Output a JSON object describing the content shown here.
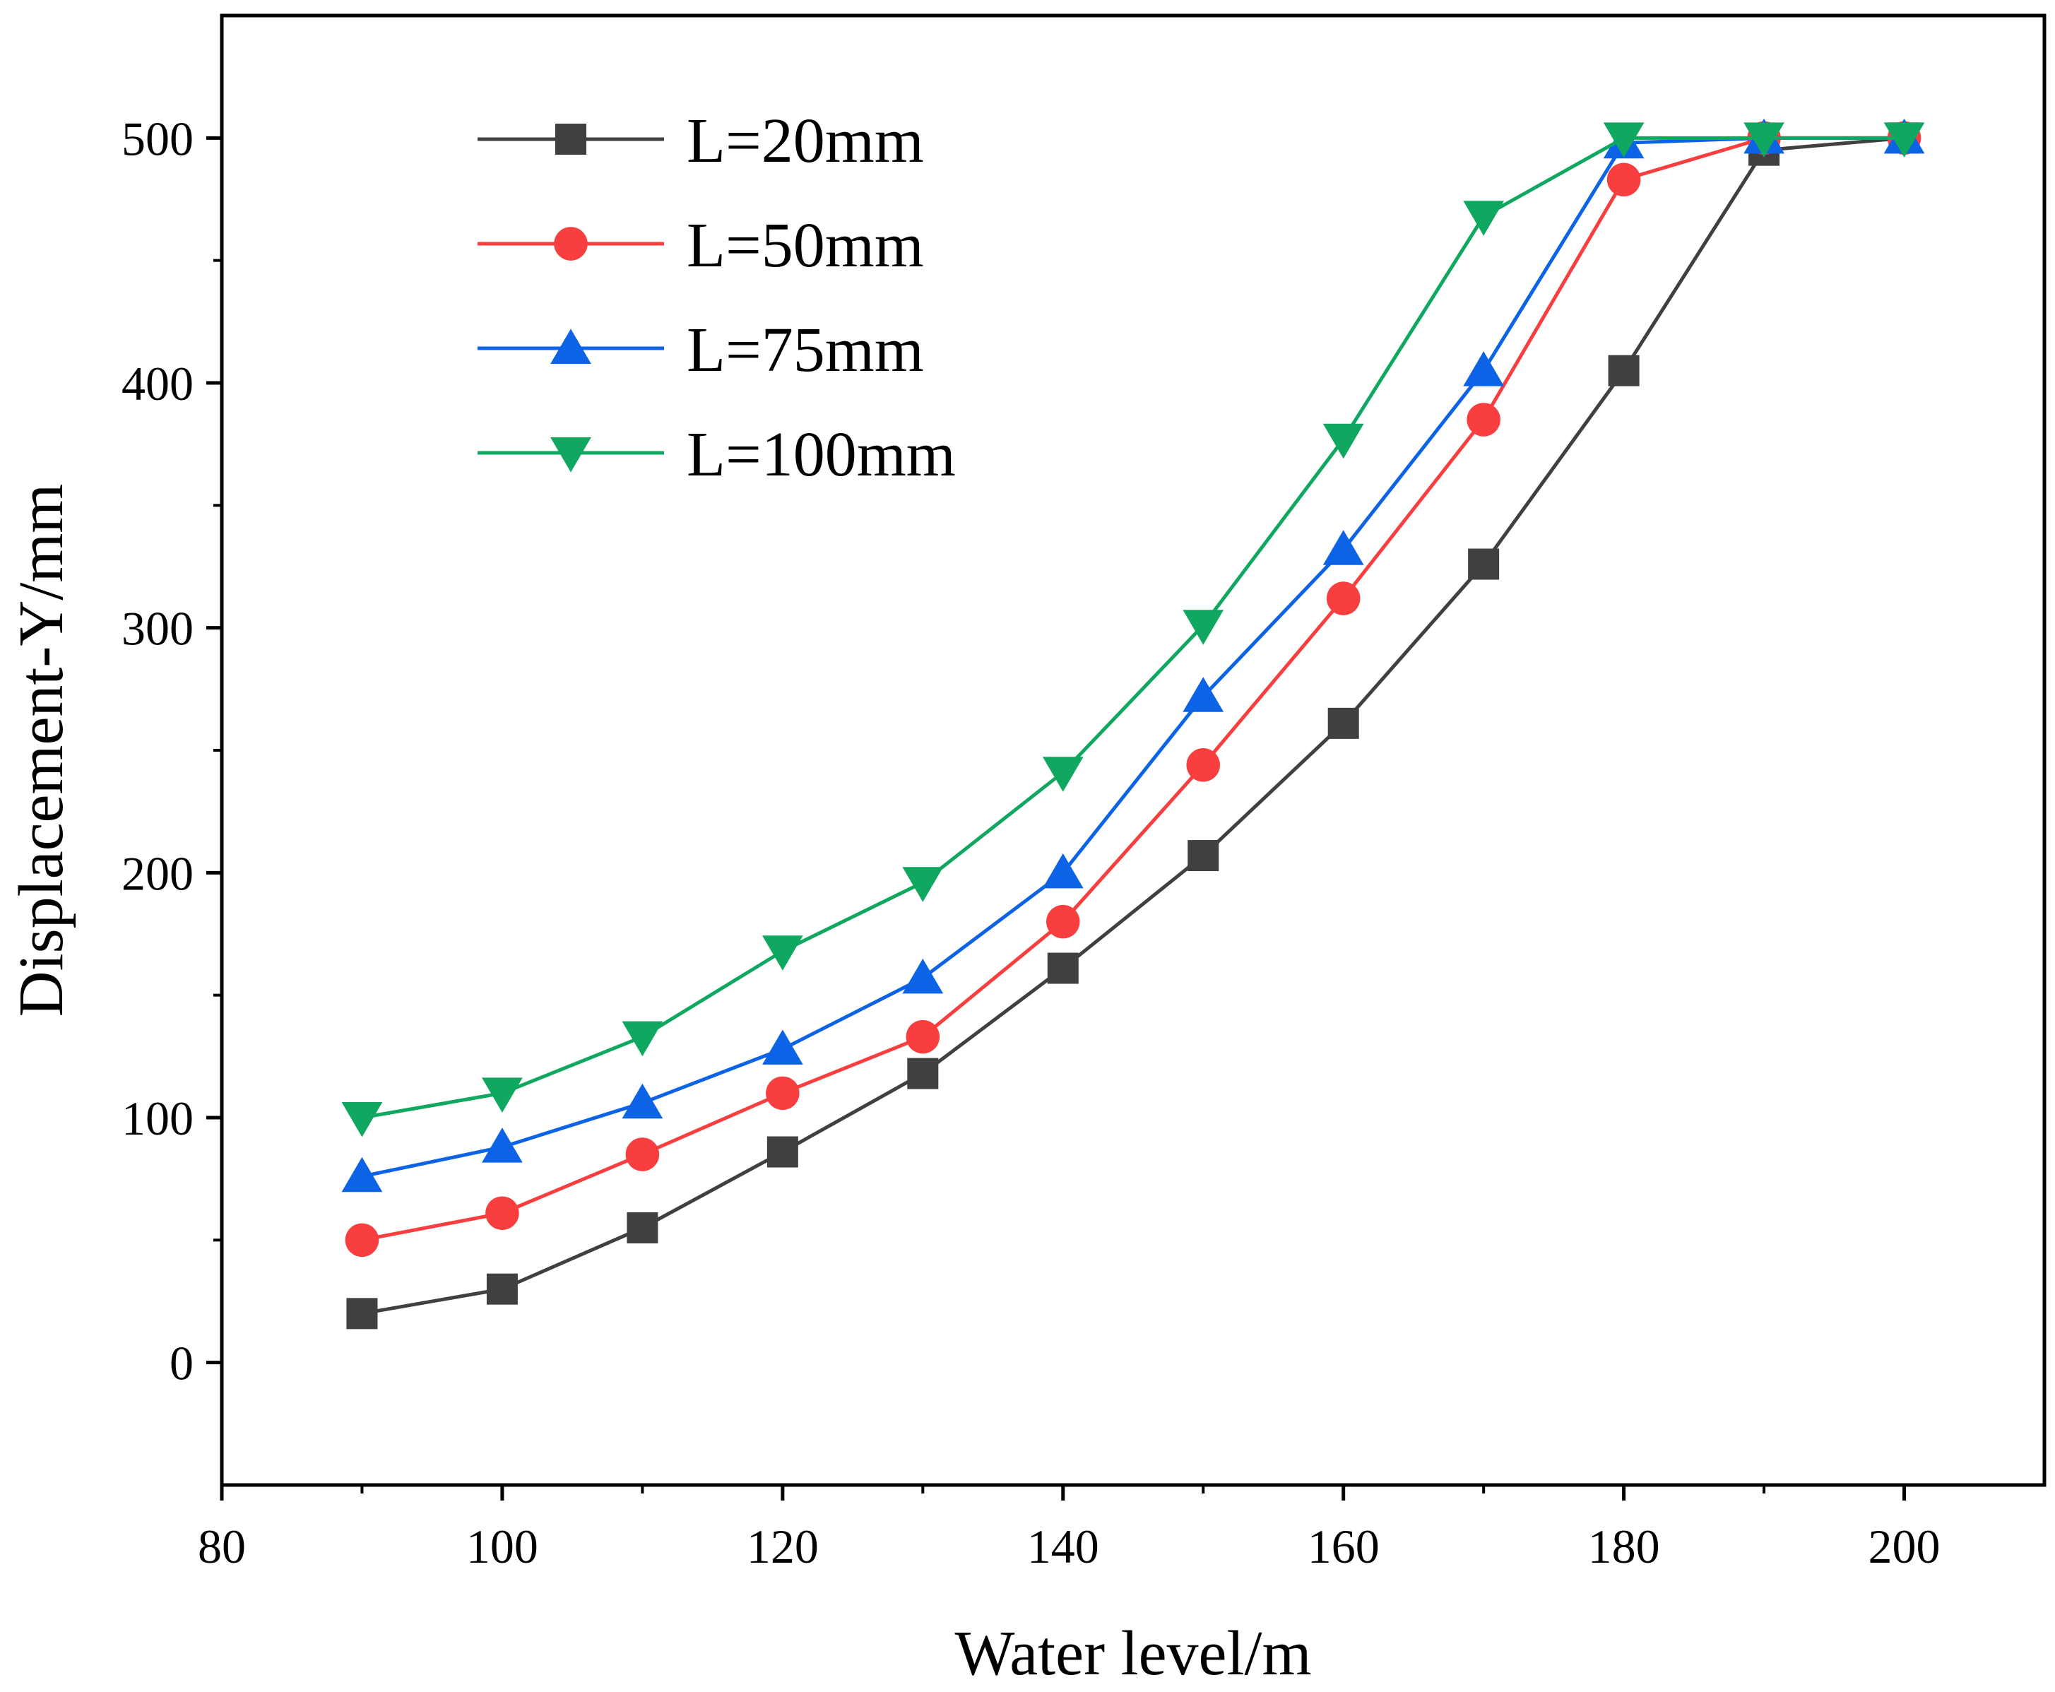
{
  "chart_data": {
    "type": "line",
    "title": "",
    "xlabel": "Water level/m",
    "ylabel": "Displacement-Y/mm",
    "xlim": [
      80,
      210
    ],
    "ylim": [
      -50,
      550
    ],
    "xticks": [
      80,
      100,
      120,
      140,
      160,
      180,
      200
    ],
    "yticks": [
      0,
      100,
      200,
      300,
      400,
      500
    ],
    "grid": false,
    "legend_position": "top-left",
    "x": [
      90,
      100,
      110,
      120,
      130,
      140,
      150,
      160,
      170,
      180,
      190,
      200
    ],
    "series": [
      {
        "name": "L=20mm",
        "color": "#404040",
        "marker": "square",
        "values": [
          20,
          30,
          55,
          86,
          118,
          161,
          207,
          261,
          326,
          405,
          495,
          500
        ]
      },
      {
        "name": "L=50mm",
        "color": "#f83e3e",
        "marker": "circle",
        "values": [
          50,
          61,
          85,
          110,
          133,
          180,
          244,
          312,
          385,
          483,
          500,
          500
        ]
      },
      {
        "name": "L=75mm",
        "color": "#0c63e6",
        "marker": "triangle-up",
        "values": [
          76,
          88,
          106,
          128,
          157,
          200,
          272,
          332,
          405,
          498,
          500,
          500
        ]
      },
      {
        "name": "L=100mm",
        "color": "#10a860",
        "marker": "triangle-down",
        "values": [
          100,
          110,
          133,
          168,
          196,
          241,
          301,
          377,
          468,
          500,
          500,
          500
        ]
      }
    ]
  }
}
